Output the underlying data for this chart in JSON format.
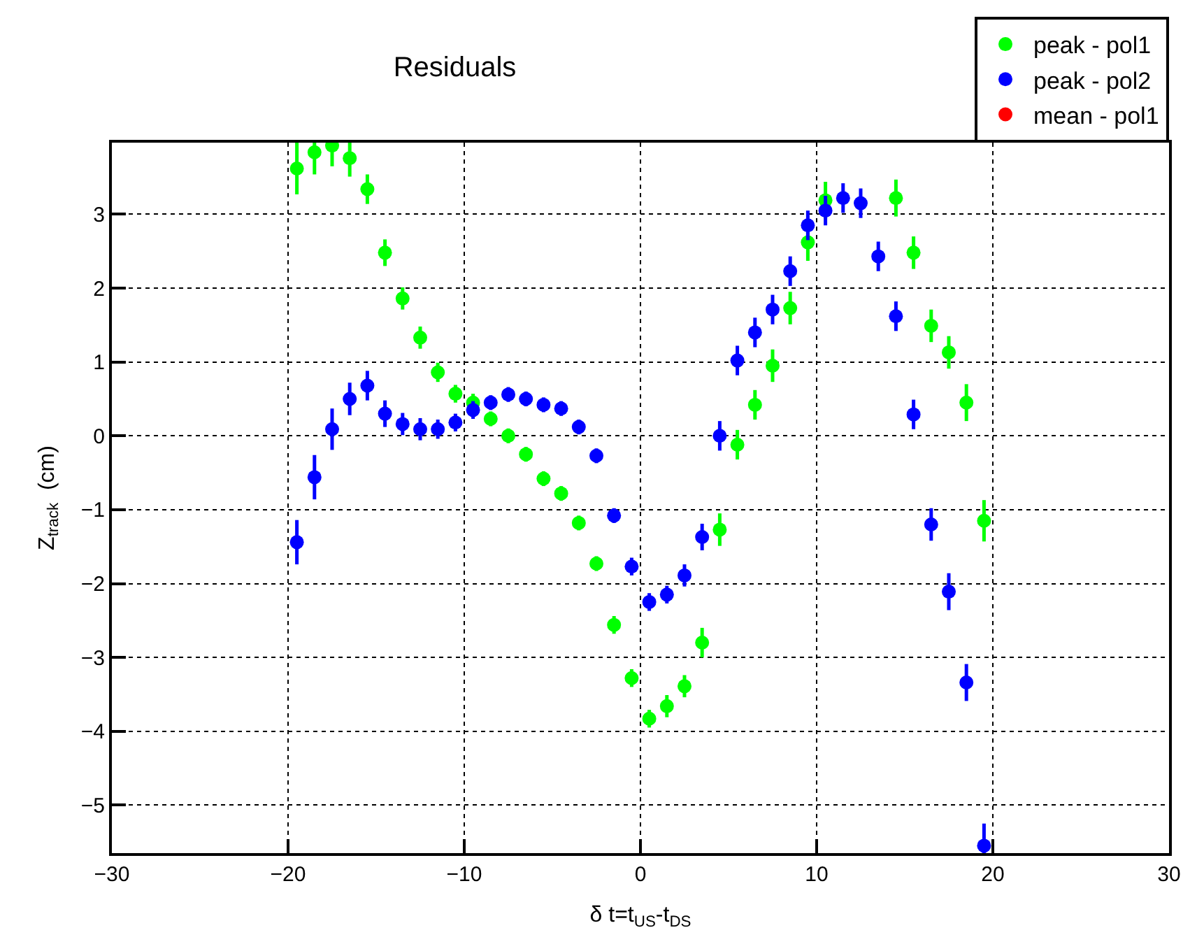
{
  "chart_data": {
    "type": "scatter",
    "title": "Residuals",
    "xlabel": "δ t=t$_{US}$-t$_{DS}$",
    "ylabel": "Z$_{track}$  (cm)",
    "x": [
      -19.5,
      -18.5,
      -17.5,
      -16.5,
      -15.5,
      -14.5,
      -13.5,
      -12.5,
      -11.5,
      -10.5,
      -9.5,
      -8.5,
      -7.5,
      -6.5,
      -5.5,
      -4.5,
      -3.5,
      -2.5,
      -1.5,
      -0.5,
      0.5,
      1.5,
      2.5,
      3.5,
      4.5,
      5.5,
      6.5,
      7.5,
      8.5,
      9.5,
      10.5,
      11.5,
      12.5,
      13.5,
      14.5,
      15.5,
      16.5,
      17.5,
      18.5,
      19.5
    ],
    "series": [
      {
        "name": "peak - pol1",
        "color": "#00ff00",
        "values": [
          3.62,
          3.84,
          3.93,
          3.76,
          3.34,
          2.48,
          1.86,
          1.33,
          0.86,
          0.57,
          0.45,
          0.23,
          0.0,
          -0.25,
          -0.58,
          -0.78,
          -1.18,
          -1.73,
          -2.56,
          -3.28,
          -3.83,
          -3.66,
          -3.39,
          -2.8,
          -1.27,
          -0.12,
          0.42,
          0.95,
          1.73,
          2.62,
          3.19,
          null,
          null,
          null,
          3.22,
          2.48,
          1.49,
          1.13,
          0.45,
          -1.15
        ],
        "errors": [
          0.35,
          0.3,
          0.28,
          0.25,
          0.2,
          0.18,
          0.15,
          0.15,
          0.13,
          0.12,
          0.12,
          0.1,
          0.1,
          0.1,
          0.1,
          0.1,
          0.1,
          0.1,
          0.12,
          0.12,
          0.12,
          0.15,
          0.15,
          0.2,
          0.22,
          0.2,
          0.2,
          0.22,
          0.22,
          0.25,
          0.25,
          null,
          null,
          null,
          0.25,
          0.22,
          0.22,
          0.22,
          0.25,
          0.28
        ]
      },
      {
        "name": "peak - pol2",
        "color": "#0000ff",
        "values": [
          -1.44,
          -0.56,
          0.09,
          0.5,
          0.68,
          0.3,
          0.16,
          0.09,
          0.09,
          0.18,
          0.35,
          0.45,
          0.56,
          0.5,
          0.42,
          0.37,
          0.12,
          -0.27,
          -1.08,
          -1.77,
          -2.25,
          -2.15,
          -1.89,
          -1.37,
          0.0,
          1.02,
          1.4,
          1.71,
          2.23,
          2.85,
          3.05,
          3.22,
          3.15,
          2.43,
          1.62,
          0.29,
          -1.2,
          -2.11,
          -3.34,
          -5.55
        ],
        "errors": [
          0.3,
          0.3,
          0.28,
          0.22,
          0.2,
          0.18,
          0.15,
          0.15,
          0.13,
          0.12,
          0.12,
          0.1,
          0.1,
          0.1,
          0.1,
          0.1,
          0.1,
          0.1,
          0.1,
          0.12,
          0.12,
          0.12,
          0.15,
          0.18,
          0.2,
          0.2,
          0.2,
          0.2,
          0.2,
          0.2,
          0.2,
          0.2,
          0.2,
          0.2,
          0.2,
          0.2,
          0.22,
          0.25,
          0.25,
          0.3
        ]
      },
      {
        "name": "mean - pol1",
        "color": "#ff0000",
        "values": [
          null,
          null,
          null,
          null,
          null,
          null,
          null,
          null,
          null,
          null,
          null,
          null,
          null,
          null,
          null,
          null,
          null,
          null,
          null,
          null,
          null,
          null,
          null,
          null,
          null,
          null,
          null,
          null,
          null,
          null,
          null,
          null,
          null,
          null,
          null,
          null,
          null,
          null,
          null,
          null
        ]
      }
    ],
    "xlim": [
      -30,
      30
    ],
    "xticks": [
      -30,
      -20,
      -10,
      0,
      10,
      20,
      30
    ],
    "ylim": [
      -5.65,
      3.97
    ],
    "yticks": [
      -5,
      -4,
      -3,
      -2,
      -1,
      0,
      1,
      2,
      3
    ],
    "grid": true,
    "legend": "top right",
    "marker": "circle"
  }
}
